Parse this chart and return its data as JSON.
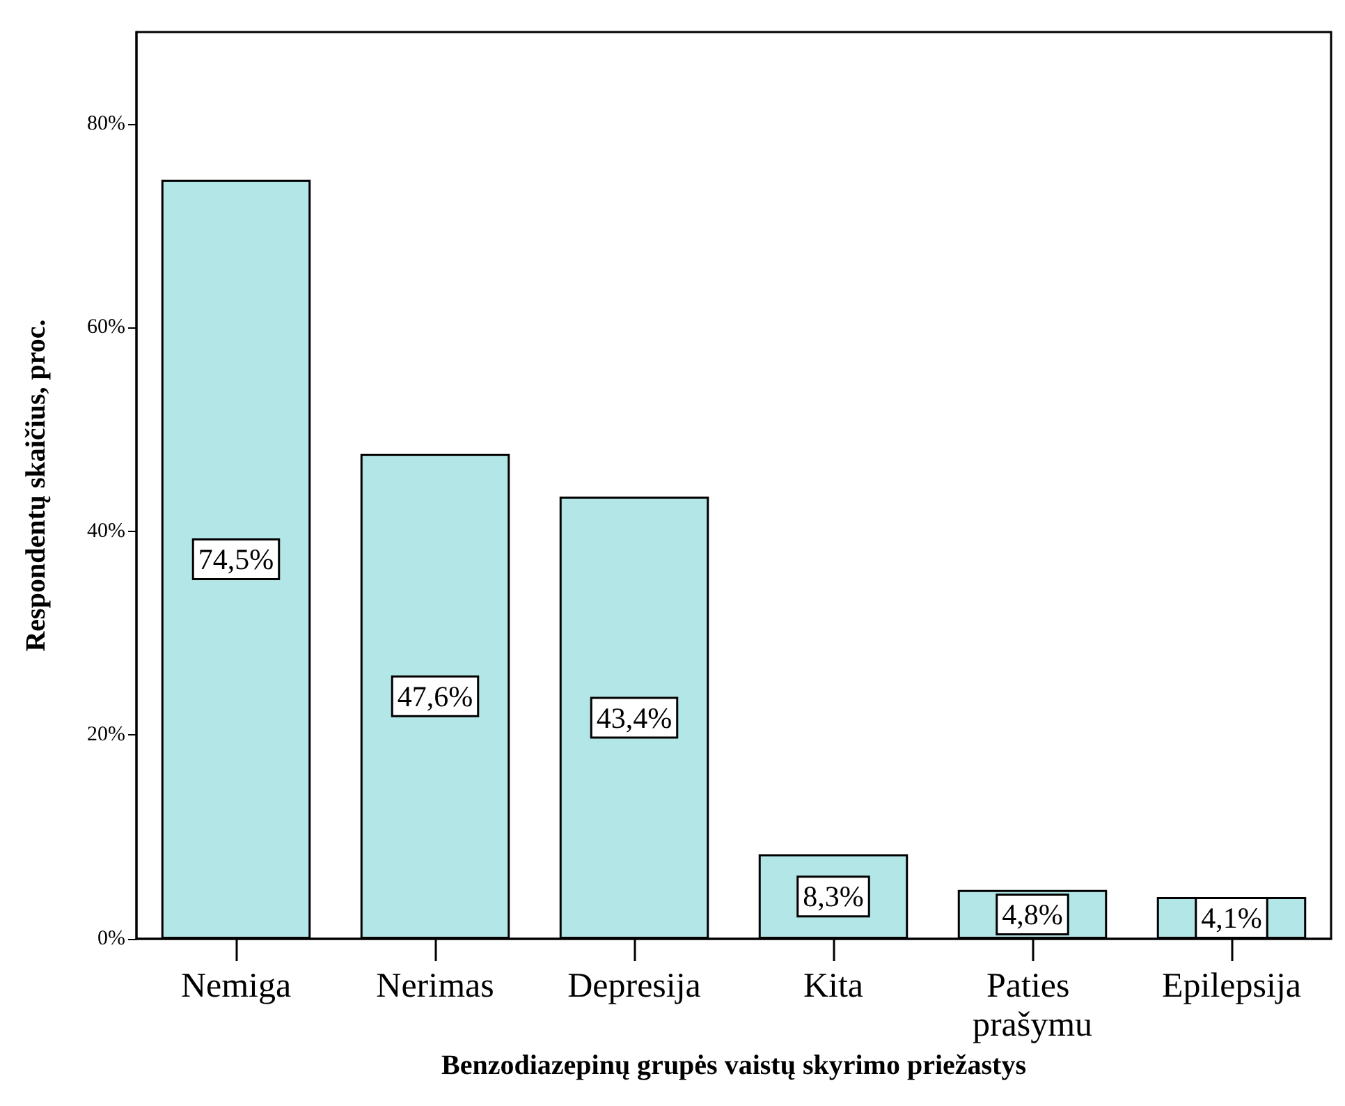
{
  "chart_data": {
    "type": "bar",
    "xlabel": "Benzodiazepinų grupės vaistų skyrimo priežastys",
    "ylabel": "Respondentų skaičius, proc.",
    "categories": [
      "Nemiga",
      "Nerimas",
      "Depresija",
      "Kita",
      "Paties prašymu",
      "Epilepsija"
    ],
    "values": [
      74.5,
      47.6,
      43.4,
      8.3,
      4.8,
      4.1
    ],
    "value_labels": [
      "74,5%",
      "47,6%",
      "43,4%",
      "8,3%",
      "4,8%",
      "4,1%"
    ],
    "color": "#b3e6e6",
    "ylim": [
      0,
      89
    ],
    "yticks": [
      {
        "value": 0,
        "label": "0%"
      },
      {
        "value": 20,
        "label": "20%"
      },
      {
        "value": 40,
        "label": "40%"
      },
      {
        "value": 60,
        "label": "60%"
      },
      {
        "value": 80,
        "label": "80%"
      }
    ],
    "grid": false
  }
}
